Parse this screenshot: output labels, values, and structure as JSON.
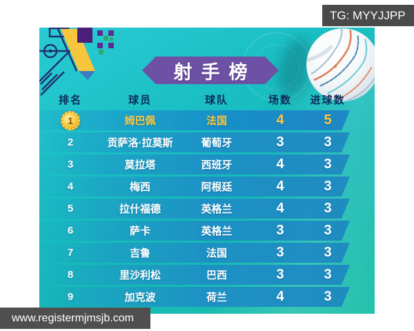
{
  "watermark_top": {
    "label": "TG: MYYJJPP"
  },
  "watermark_bottom": {
    "label": "www.registermjmsjb.com"
  },
  "title": "射手榜",
  "chart_data": {
    "type": "table",
    "title": "射手榜",
    "columns": [
      "排名",
      "球员",
      "球队",
      "场数",
      "进球数"
    ],
    "rows": [
      {
        "rank": "1",
        "player": "姆巴佩",
        "team": "法国",
        "matches": "4",
        "goals": "5",
        "highlight": true
      },
      {
        "rank": "2",
        "player": "贡萨洛·拉莫斯",
        "team": "葡萄牙",
        "matches": "3",
        "goals": "3",
        "highlight": false
      },
      {
        "rank": "3",
        "player": "莫拉塔",
        "team": "西班牙",
        "matches": "4",
        "goals": "3",
        "highlight": false
      },
      {
        "rank": "4",
        "player": "梅西",
        "team": "阿根廷",
        "matches": "4",
        "goals": "3",
        "highlight": false
      },
      {
        "rank": "5",
        "player": "拉什福德",
        "team": "英格兰",
        "matches": "4",
        "goals": "3",
        "highlight": false
      },
      {
        "rank": "6",
        "player": "萨卡",
        "team": "英格兰",
        "matches": "3",
        "goals": "3",
        "highlight": false
      },
      {
        "rank": "7",
        "player": "吉鲁",
        "team": "法国",
        "matches": "3",
        "goals": "3",
        "highlight": false
      },
      {
        "rank": "8",
        "player": "里沙利松",
        "team": "巴西",
        "matches": "3",
        "goals": "3",
        "highlight": false
      },
      {
        "rank": "9",
        "player": "加克波",
        "team": "荷兰",
        "matches": "4",
        "goals": "3",
        "highlight": false
      }
    ],
    "layout": {
      "highlight_row_text": "gold",
      "row_shape": "slanted-right-bar",
      "legend": "none",
      "grid": "off"
    }
  },
  "icons": {
    "rank1": "gold-medal-icon",
    "ball": "soccer-ball",
    "corner": "world-cup-corner-art"
  },
  "colors": {
    "panel_teal": "#18bec2",
    "row_blue": "#1f8cc0",
    "banner_purple": "#6d51a4",
    "header_navy": "#0c2b5a",
    "highlight_gold": "#ffc83d",
    "watermark_gray": "#4a4a4a",
    "deco_yellow": "#f8c63d",
    "deco_purple": "#4a1f7a"
  }
}
